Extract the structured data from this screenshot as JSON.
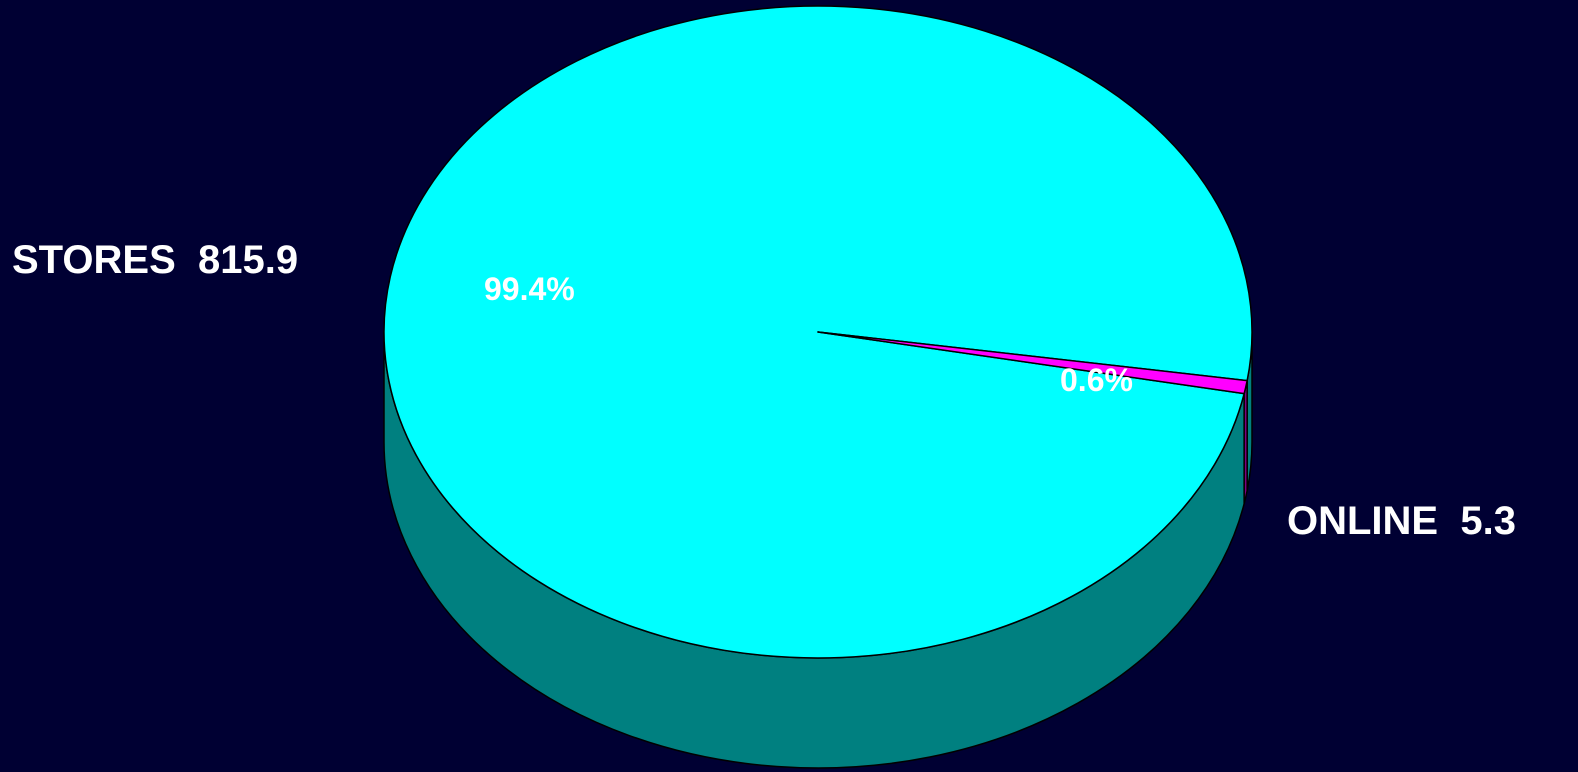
{
  "chart_data": {
    "type": "pie",
    "style": "3d",
    "background_color": "#000033",
    "slices": [
      {
        "category": "STORES",
        "value": 815.9,
        "value_text": "815.9",
        "percent_label": "99.4%",
        "top_color": "#00ffff",
        "side_color": "#008080"
      },
      {
        "category": "ONLINE",
        "value": 5.3,
        "value_text": "5.3",
        "percent_label": "0.6%",
        "top_color": "#ff00ff",
        "side_color": "#800080"
      }
    ],
    "legend": "none"
  }
}
